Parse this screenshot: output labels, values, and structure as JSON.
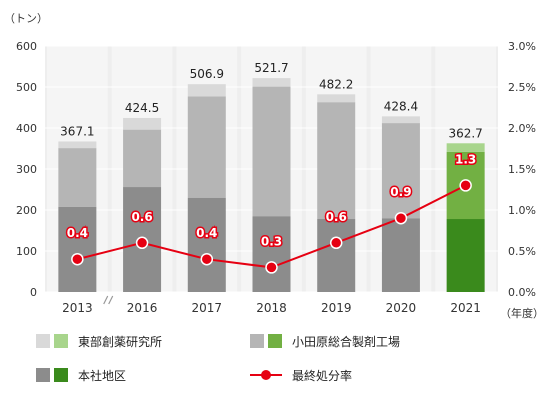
{
  "chart_data": {
    "type": "bar",
    "stacked": true,
    "categories": [
      "2013",
      "2016",
      "2017",
      "2018",
      "2019",
      "2020",
      "2021"
    ],
    "y_unit": "（トン）",
    "x_unit": "（年度）",
    "ylim": [
      0,
      600
    ],
    "yticks": [
      "0",
      "100",
      "200",
      "300",
      "400",
      "500",
      "600"
    ],
    "y2lim": [
      0,
      3.0
    ],
    "y2ticks": [
      "0.0%",
      "0.5%",
      "1.0%",
      "1.5%",
      "2.0%",
      "2.5%",
      "3.0%"
    ],
    "axis_break_after": "2013",
    "grid": true,
    "series": [
      {
        "name": "本社地区",
        "values": [
          208,
          256,
          230,
          185,
          178,
          180,
          178
        ]
      },
      {
        "name": "小田原総合製剤工場",
        "values": [
          143,
          140,
          247,
          316,
          285,
          232,
          164
        ]
      },
      {
        "name": "東部創薬研究所",
        "values": [
          16.1,
          28.5,
          29.9,
          20.7,
          19.2,
          16.4,
          20.7
        ]
      }
    ],
    "totals": [
      "367.1",
      "424.5",
      "506.9",
      "521.7",
      "482.2",
      "428.4",
      "362.7"
    ],
    "line": {
      "name": "最終処分率",
      "values": [
        0.4,
        0.6,
        0.4,
        0.3,
        0.6,
        0.9,
        1.3
      ],
      "labels": [
        "0.4",
        "0.6",
        "0.4",
        "0.3",
        "0.6",
        "0.9",
        "1.3"
      ]
    },
    "highlight_category": "2021",
    "colors": {
      "grey_bottom": "#8c8c8c",
      "grey_middle": "#b5b5b5",
      "grey_top": "#d9d9d9",
      "green_bottom": "#3a8a1c",
      "green_middle": "#72b043",
      "green_top": "#a8d58c",
      "line": "#e60012",
      "highlight_text": "#5a9e2f",
      "grid": "#ffffff",
      "plot_bg": "#ffffff"
    },
    "legend": [
      {
        "label": "東部創薬研究所",
        "swatches": [
          "grey_top",
          "green_top"
        ],
        "kind": "box"
      },
      {
        "label": "小田原総合製剤工場",
        "swatches": [
          "grey_middle",
          "green_middle"
        ],
        "kind": "box"
      },
      {
        "label": "本社地区",
        "swatches": [
          "grey_bottom",
          "green_bottom"
        ],
        "kind": "box"
      },
      {
        "label": "最終処分率",
        "kind": "line"
      }
    ]
  }
}
